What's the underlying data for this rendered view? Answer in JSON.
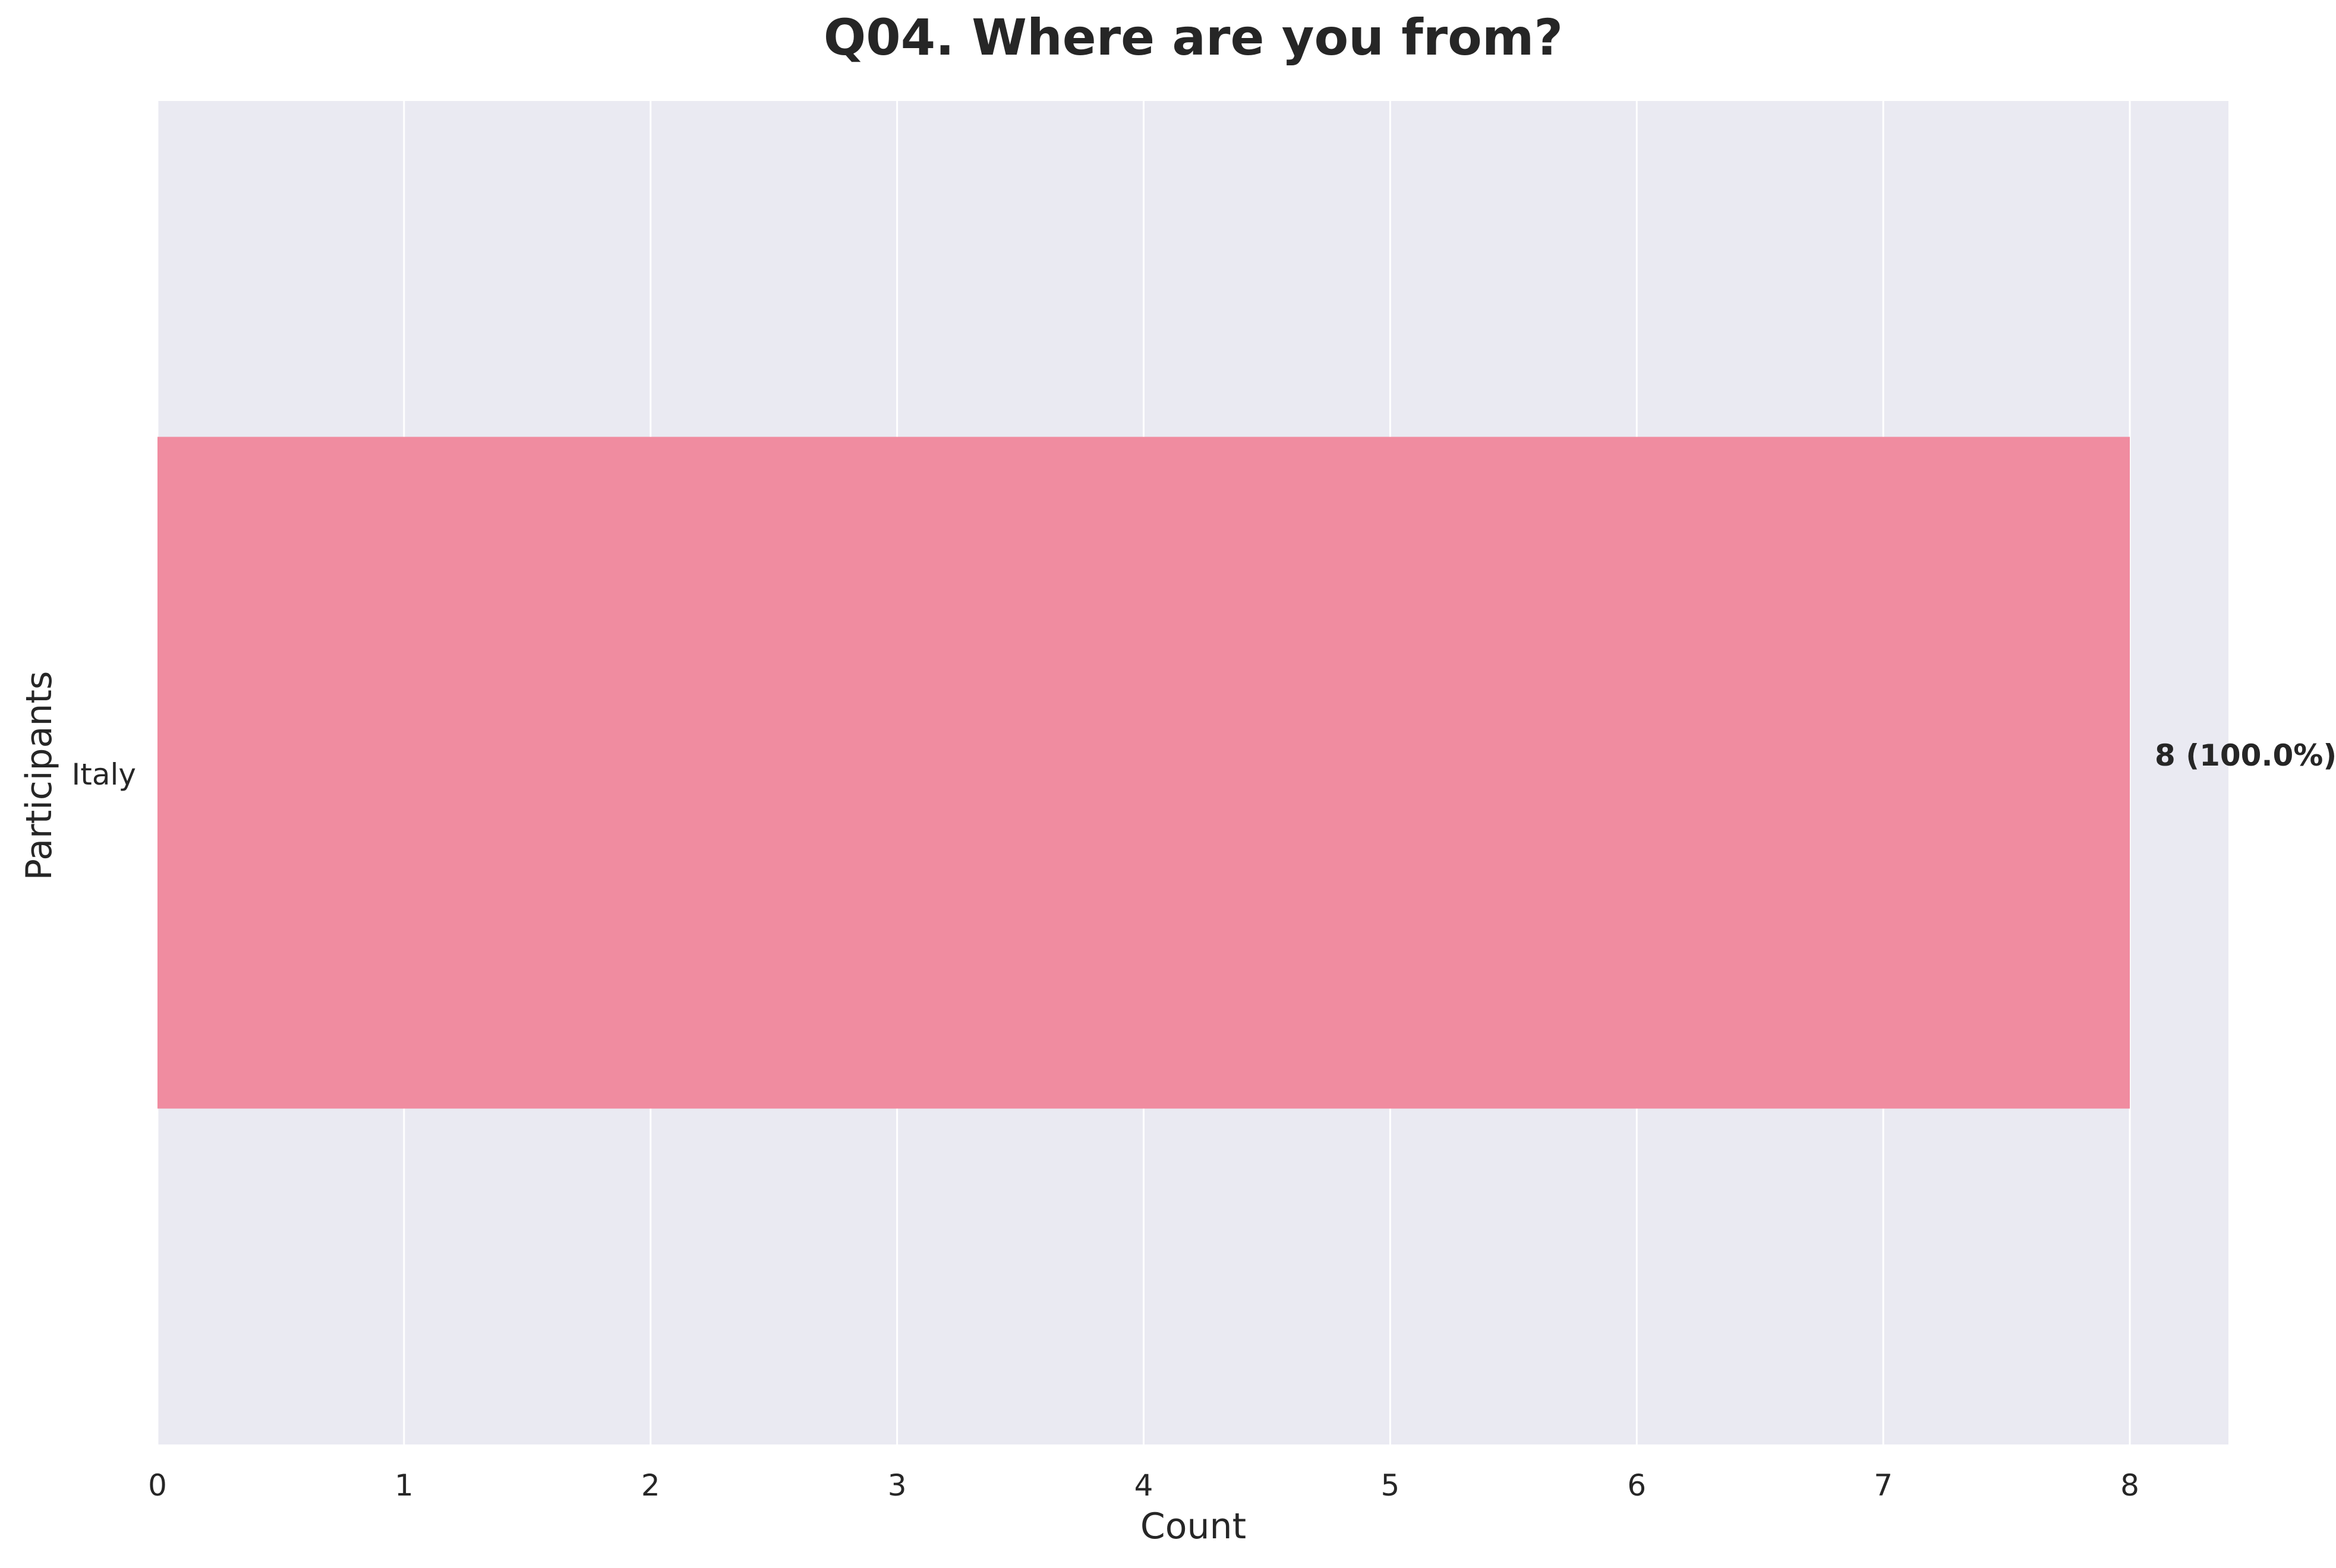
{
  "chart_data": {
    "type": "bar",
    "orientation": "horizontal",
    "title": "Q04. Where are you from?",
    "xlabel": "Count",
    "ylabel": "Participants",
    "categories": [
      "Italy"
    ],
    "values": [
      8
    ],
    "value_labels": [
      "8 (100.0%)"
    ],
    "xlim": [
      0,
      8.4
    ],
    "x_ticks": [
      0,
      1,
      2,
      3,
      4,
      5,
      6,
      7,
      8
    ],
    "grid": true,
    "bar_color": "#f08ca0",
    "background_color": "#eaeaf2",
    "grid_color": "#ffffff"
  }
}
